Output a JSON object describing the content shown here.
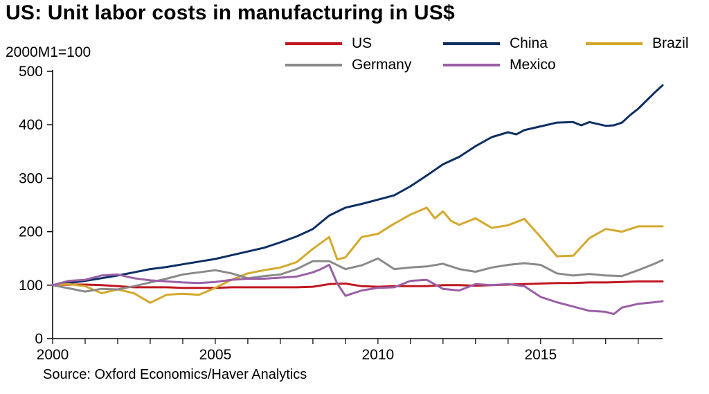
{
  "title": "US: Unit labor costs in manufacturing in US$",
  "unit_label": "2000M1=100",
  "source": "Source: Oxford Economics/Haver Analytics",
  "colors": {
    "US": "#c0161f",
    "China": "#0d2f63",
    "Brazil": "#d4a82c",
    "Germany": "#8a8a8a",
    "Mexico": "#9a5fa6"
  },
  "chart_data": {
    "type": "line",
    "title": "US: Unit labor costs in manufacturing in US$",
    "ylabel": "2000M1=100",
    "xlabel": "",
    "xlim": [
      2000,
      2018.75
    ],
    "ylim": [
      0,
      500
    ],
    "x_ticks": [
      "2000",
      "2005",
      "2010",
      "2015"
    ],
    "y_ticks": [
      "0",
      "100",
      "200",
      "300",
      "400",
      "500"
    ],
    "legend_position": "top-right",
    "grid": false,
    "series": [
      {
        "name": "US",
        "color": "#c0161f",
        "x": [
          2000,
          2000.5,
          2001,
          2001.5,
          2002,
          2002.5,
          2003,
          2003.5,
          2004,
          2004.5,
          2005,
          2005.5,
          2006,
          2006.5,
          2007,
          2007.5,
          2008,
          2008.5,
          2009,
          2009.5,
          2010,
          2010.5,
          2011,
          2011.5,
          2012,
          2012.5,
          2013,
          2013.5,
          2014,
          2014.5,
          2015,
          2015.5,
          2016,
          2016.5,
          2017,
          2017.5,
          2018,
          2018.5,
          2018.75
        ],
        "values": [
          100,
          101,
          101,
          100,
          98,
          96,
          96,
          96,
          95,
          95,
          95,
          96,
          96,
          96,
          96,
          96,
          97,
          102,
          103,
          98,
          97,
          98,
          98,
          98,
          100,
          100,
          99,
          100,
          101,
          102,
          103,
          104,
          104,
          105,
          105,
          106,
          107,
          107,
          107
        ]
      },
      {
        "name": "China",
        "color": "#0d2f63",
        "x": [
          2000,
          2000.5,
          2001,
          2001.5,
          2002,
          2002.5,
          2003,
          2003.5,
          2004,
          2004.5,
          2005,
          2005.5,
          2006,
          2006.5,
          2007,
          2007.5,
          2008,
          2008.5,
          2009,
          2009.5,
          2010,
          2010.5,
          2011,
          2011.5,
          2012,
          2012.5,
          2013,
          2013.5,
          2014,
          2014.25,
          2014.5,
          2015,
          2015.5,
          2016,
          2016.25,
          2016.5,
          2017,
          2017.25,
          2017.5,
          2017.75,
          2018,
          2018.25,
          2018.5,
          2018.75
        ],
        "values": [
          100,
          104,
          108,
          113,
          118,
          124,
          130,
          134,
          139,
          144,
          149,
          156,
          163,
          170,
          180,
          191,
          205,
          230,
          245,
          252,
          260,
          268,
          285,
          305,
          326,
          340,
          360,
          377,
          386,
          382,
          390,
          397,
          404,
          405,
          399,
          405,
          398,
          399,
          404,
          418,
          430,
          445,
          460,
          474
        ]
      },
      {
        "name": "Brazil",
        "color": "#d4a82c",
        "x": [
          2000,
          2000.5,
          2001,
          2001.5,
          2002,
          2002.5,
          2003,
          2003.5,
          2004,
          2004.5,
          2005,
          2005.5,
          2006,
          2006.5,
          2007,
          2007.5,
          2008,
          2008.5,
          2008.75,
          2009,
          2009.5,
          2010,
          2010.5,
          2011,
          2011.5,
          2011.75,
          2012,
          2012.25,
          2012.5,
          2013,
          2013.5,
          2014,
          2014.5,
          2015,
          2015.5,
          2016,
          2016.5,
          2017,
          2017.5,
          2018,
          2018.5,
          2018.75
        ],
        "values": [
          100,
          102,
          98,
          85,
          92,
          85,
          67,
          82,
          84,
          82,
          95,
          110,
          122,
          128,
          133,
          143,
          168,
          190,
          148,
          152,
          190,
          196,
          215,
          232,
          245,
          225,
          238,
          220,
          213,
          225,
          207,
          212,
          224,
          190,
          154,
          155,
          188,
          205,
          200,
          210,
          210,
          210
        ]
      },
      {
        "name": "Germany",
        "color": "#8a8a8a",
        "x": [
          2000,
          2000.5,
          2001,
          2001.5,
          2002,
          2002.5,
          2003,
          2003.5,
          2004,
          2004.5,
          2005,
          2005.5,
          2006,
          2006.5,
          2007,
          2007.5,
          2008,
          2008.5,
          2009,
          2009.5,
          2010,
          2010.5,
          2011,
          2011.5,
          2012,
          2012.5,
          2013,
          2013.5,
          2014,
          2014.5,
          2015,
          2015.5,
          2016,
          2016.5,
          2017,
          2017.5,
          2018,
          2018.5,
          2018.75
        ],
        "values": [
          100,
          94,
          88,
          93,
          92,
          98,
          105,
          112,
          120,
          124,
          128,
          122,
          113,
          117,
          120,
          130,
          145,
          145,
          130,
          137,
          150,
          130,
          133,
          135,
          140,
          130,
          125,
          133,
          138,
          141,
          138,
          122,
          118,
          121,
          118,
          117,
          128,
          140,
          147
        ]
      },
      {
        "name": "Mexico",
        "color": "#9a5fa6",
        "x": [
          2000,
          2000.5,
          2001,
          2001.5,
          2002,
          2002.5,
          2003,
          2003.5,
          2004,
          2004.5,
          2005,
          2005.5,
          2006,
          2006.5,
          2007,
          2007.5,
          2008,
          2008.25,
          2008.5,
          2008.75,
          2009,
          2009.5,
          2010,
          2010.5,
          2011,
          2011.5,
          2012,
          2012.5,
          2013,
          2013.5,
          2014,
          2014.5,
          2015,
          2015.5,
          2016,
          2016.5,
          2017,
          2017.25,
          2017.5,
          2018,
          2018.5,
          2018.75
        ],
        "values": [
          100,
          108,
          110,
          118,
          120,
          113,
          109,
          107,
          105,
          104,
          106,
          110,
          112,
          112,
          114,
          116,
          124,
          130,
          138,
          103,
          80,
          90,
          95,
          96,
          108,
          110,
          93,
          90,
          102,
          100,
          102,
          98,
          78,
          68,
          60,
          52,
          50,
          46,
          58,
          65,
          68,
          70
        ]
      }
    ]
  },
  "legend": [
    {
      "name": "US"
    },
    {
      "name": "China"
    },
    {
      "name": "Brazil"
    },
    {
      "name": "Germany"
    },
    {
      "name": "Mexico"
    }
  ]
}
